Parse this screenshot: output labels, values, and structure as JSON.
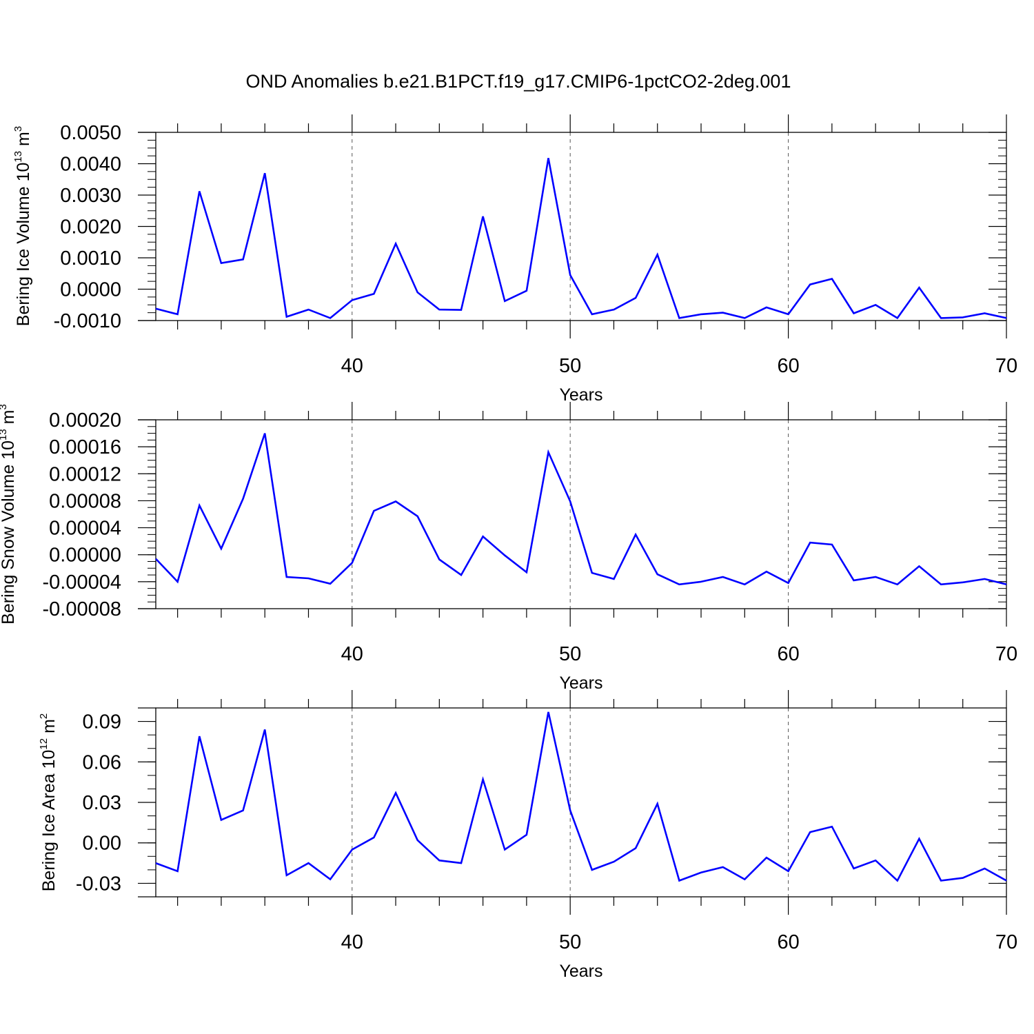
{
  "title": "OND Anomalies b.e21.B1PCT.f19_g17.CMIP6-1pctCO2-2deg.001",
  "chart_data": [
    {
      "type": "line",
      "ylabel_main": "Bering Ice Volume 10",
      "ylabel_exp": "13",
      "ylabel_unit": " m",
      "ylabel_unit_exp": "3",
      "xlabel": "Years",
      "xlim": [
        31,
        70
      ],
      "ylim": [
        -0.001,
        0.005
      ],
      "yticks": [
        -0.001,
        0.0,
        0.001,
        0.002,
        0.003,
        0.004,
        0.005
      ],
      "ytick_labels": [
        "-0.0010",
        "0.0000",
        "0.0010",
        "0.0020",
        "0.0030",
        "0.0040",
        "0.0050"
      ],
      "yminor": 0.00025,
      "xticks": [
        40,
        50,
        60,
        70
      ],
      "xtick_labels": [
        "40",
        "50",
        "60",
        "70"
      ],
      "grid_x": [
        40,
        50,
        60
      ],
      "color": "#0000ff",
      "x": [
        31,
        32,
        33,
        34,
        35,
        36,
        37,
        38,
        39,
        40,
        41,
        42,
        43,
        44,
        45,
        46,
        47,
        48,
        49,
        50,
        51,
        52,
        53,
        54,
        55,
        56,
        57,
        58,
        59,
        60,
        61,
        62,
        63,
        64,
        65,
        66,
        67,
        68,
        69,
        70
      ],
      "values": [
        -0.00062,
        -0.0008,
        0.00312,
        0.00083,
        0.00095,
        0.0037,
        -0.00088,
        -0.00065,
        -0.00092,
        -0.00035,
        -0.00015,
        0.00145,
        -0.0001,
        -0.00065,
        -0.00066,
        0.00232,
        -0.00038,
        -5e-05,
        0.00418,
        0.00045,
        -0.0008,
        -0.00065,
        -0.00028,
        0.0011,
        -0.00092,
        -0.0008,
        -0.00075,
        -0.00092,
        -0.00058,
        -0.0008,
        0.00015,
        0.00033,
        -0.00077,
        -0.0005,
        -0.00092,
        5e-05,
        -0.00092,
        -0.0009,
        -0.00077,
        -0.00092
      ]
    },
    {
      "type": "line",
      "ylabel_main": "Bering Snow Volume 10",
      "ylabel_exp": "13",
      "ylabel_unit": " m",
      "ylabel_unit_exp": "3",
      "xlabel": "Years",
      "xlim": [
        31,
        70
      ],
      "ylim": [
        -8e-05,
        0.0002
      ],
      "yticks": [
        -8e-05,
        -4e-05,
        0.0,
        4e-05,
        8e-05,
        0.00012,
        0.00016,
        0.0002
      ],
      "ytick_labels": [
        "-0.00008",
        "-0.00004",
        "0.00000",
        "0.00004",
        "0.00008",
        "0.00012",
        "0.00016",
        "0.00020"
      ],
      "yminor": 1e-05,
      "xticks": [
        40,
        50,
        60,
        70
      ],
      "xtick_labels": [
        "40",
        "50",
        "60",
        "70"
      ],
      "grid_x": [
        40,
        50,
        60
      ],
      "color": "#0000ff",
      "x": [
        31,
        32,
        33,
        34,
        35,
        36,
        37,
        38,
        39,
        40,
        41,
        42,
        43,
        44,
        45,
        46,
        47,
        48,
        49,
        50,
        51,
        52,
        53,
        54,
        55,
        56,
        57,
        58,
        59,
        60,
        61,
        62,
        63,
        64,
        65,
        66,
        67,
        68,
        69,
        70
      ],
      "values": [
        -6e-06,
        -4e-05,
        7.3e-05,
        9e-06,
        8.3e-05,
        0.00018,
        -3.3e-05,
        -3.5e-05,
        -4.3e-05,
        -1.2e-05,
        6.5e-05,
        7.9e-05,
        5.7e-05,
        -7e-06,
        -3e-05,
        2.7e-05,
        -1e-06,
        -2.6e-05,
        0.000152,
        7.9e-05,
        -2.7e-05,
        -3.6e-05,
        3e-05,
        -2.9e-05,
        -4.4e-05,
        -4e-05,
        -3.3e-05,
        -4.4e-05,
        -2.5e-05,
        -4.2e-05,
        1.8e-05,
        1.5e-05,
        -3.8e-05,
        -3.3e-05,
        -4.4e-05,
        -1.7e-05,
        -4.4e-05,
        -4.1e-05,
        -3.6e-05,
        -4.4e-05
      ]
    },
    {
      "type": "line",
      "ylabel_main": "Bering Ice Area 10",
      "ylabel_exp": "12",
      "ylabel_unit": " m",
      "ylabel_unit_exp": "2",
      "xlabel": "Years",
      "xlim": [
        31,
        70
      ],
      "ylim": [
        -0.04,
        0.1
      ],
      "yticks": [
        -0.03,
        0.0,
        0.03,
        0.06,
        0.09
      ],
      "ytick_labels": [
        "-0.03",
        "0.00",
        "0.03",
        "0.06",
        "0.09"
      ],
      "yminor": 0.01,
      "xticks": [
        40,
        50,
        60,
        70
      ],
      "xtick_labels": [
        "40",
        "50",
        "60",
        "70"
      ],
      "grid_x": [
        40,
        50,
        60
      ],
      "color": "#0000ff",
      "x": [
        31,
        32,
        33,
        34,
        35,
        36,
        37,
        38,
        39,
        40,
        41,
        42,
        43,
        44,
        45,
        46,
        47,
        48,
        49,
        50,
        51,
        52,
        53,
        54,
        55,
        56,
        57,
        58,
        59,
        60,
        61,
        62,
        63,
        64,
        65,
        66,
        67,
        68,
        69,
        70
      ],
      "values": [
        -0.015,
        -0.021,
        0.079,
        0.017,
        0.024,
        0.084,
        -0.024,
        -0.015,
        -0.027,
        -0.005,
        0.004,
        0.037,
        0.002,
        -0.013,
        -0.015,
        0.047,
        -0.005,
        0.006,
        0.097,
        0.024,
        -0.02,
        -0.014,
        -0.004,
        0.029,
        -0.028,
        -0.022,
        -0.018,
        -0.027,
        -0.011,
        -0.021,
        0.008,
        0.012,
        -0.019,
        -0.013,
        -0.028,
        0.003,
        -0.028,
        -0.026,
        -0.019,
        -0.028
      ]
    }
  ]
}
